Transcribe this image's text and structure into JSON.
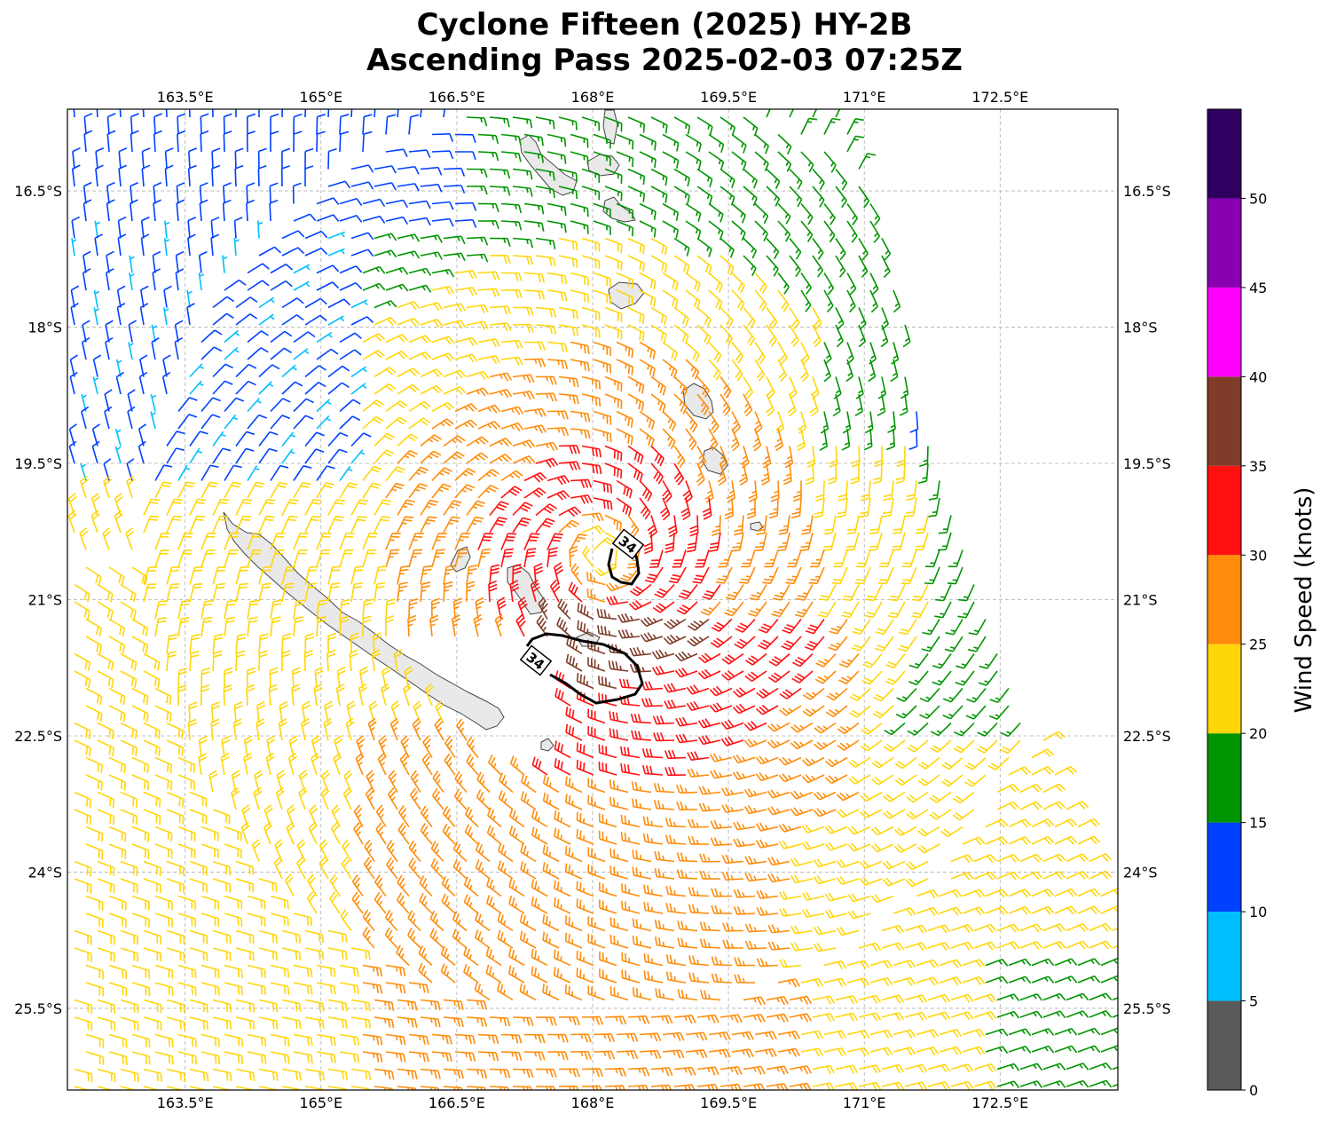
{
  "title": {
    "line1": "Cyclone Fifteen (2025) HY-2B",
    "line2": "Ascending Pass 2025-02-03 07:25Z"
  },
  "map": {
    "lon_ticks": [
      "163.5°E",
      "165°E",
      "166.5°E",
      "168°E",
      "169.5°E",
      "171°E",
      "172.5°E"
    ],
    "lat_ticks": [
      "16.5°S",
      "18°S",
      "19.5°S",
      "21°S",
      "22.5°S",
      "24°S",
      "25.5°S"
    ],
    "lon_values": [
      163.5,
      165,
      166.5,
      168,
      169.5,
      171,
      172.5
    ],
    "lat_values": [
      16.5,
      18,
      19.5,
      21,
      22.5,
      24,
      25.5
    ],
    "lon_range": [
      162.2,
      173.8
    ],
    "lat_range": [
      15.6,
      26.4
    ],
    "gridlines": true,
    "storm_center": {
      "lon": 168.1,
      "lat": 20.5
    },
    "contour_label": "34",
    "contour_labels_count": 2
  },
  "colorbar": {
    "label": "Wind Speed (knots)",
    "ticks": [
      "0",
      "5",
      "10",
      "15",
      "20",
      "25",
      "30",
      "35",
      "40",
      "45",
      "50"
    ],
    "bins": [
      {
        "from": 0,
        "to": 5,
        "color": "#595959"
      },
      {
        "from": 5,
        "to": 10,
        "color": "#00bfff"
      },
      {
        "from": 10,
        "to": 15,
        "color": "#0040ff"
      },
      {
        "from": 15,
        "to": 20,
        "color": "#009500"
      },
      {
        "from": 20,
        "to": 25,
        "color": "#ffd60a"
      },
      {
        "from": 25,
        "to": 30,
        "color": "#ff8c0a"
      },
      {
        "from": 30,
        "to": 35,
        "color": "#ff1010"
      },
      {
        "from": 35,
        "to": 40,
        "color": "#7f3c28"
      },
      {
        "from": 40,
        "to": 45,
        "color": "#ff00ff"
      },
      {
        "from": 45,
        "to": 50,
        "color": "#8800b0"
      },
      {
        "from": 50,
        "to": 55,
        "color": "#300060"
      }
    ]
  }
}
